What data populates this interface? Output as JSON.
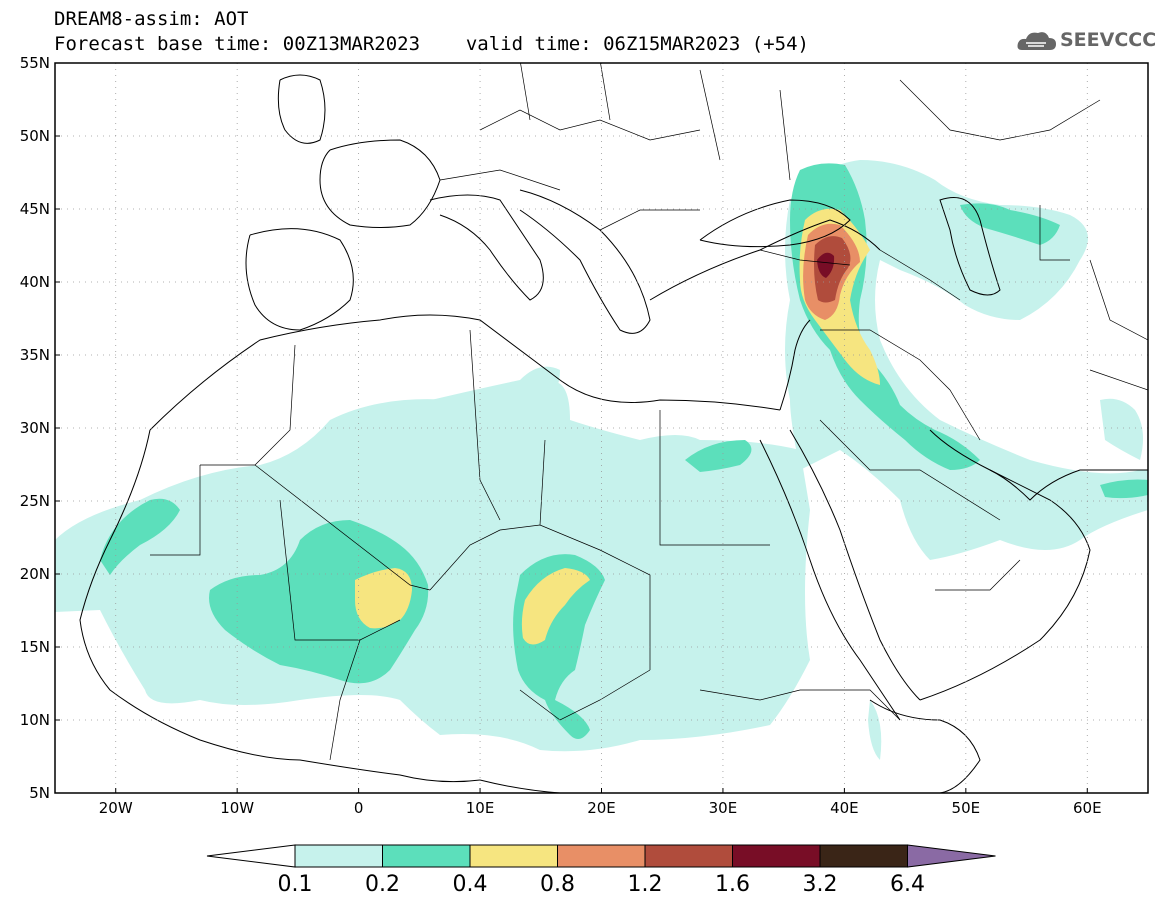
{
  "header": {
    "title_line1": "DREAM8-assim: AOT",
    "base_label": "Forecast base time: 00Z13MAR2023",
    "valid_label": "valid time: 06Z15MAR2023 (+54)"
  },
  "logo": {
    "text": "SEEVCCC",
    "icon": "cloud-icon"
  },
  "map": {
    "lat_range": [
      5,
      55
    ],
    "lon_range": [
      -25,
      65
    ],
    "lat_labels": [
      "55N",
      "50N",
      "45N",
      "40N",
      "35N",
      "30N",
      "25N",
      "20N",
      "15N",
      "10N",
      "5N"
    ],
    "lat_values": [
      55,
      50,
      45,
      40,
      35,
      30,
      25,
      20,
      15,
      10,
      5
    ],
    "lon_labels": [
      "20W",
      "10W",
      "0",
      "10E",
      "20E",
      "30E",
      "40E",
      "50E",
      "60E"
    ],
    "lon_values": [
      -20,
      -10,
      0,
      10,
      20,
      30,
      40,
      50,
      60
    ]
  },
  "colorbar": {
    "colors": [
      "#ffffff",
      "#c6f2ec",
      "#5cdfbb",
      "#f6e580",
      "#e88f66",
      "#b04c3c",
      "#780d26",
      "#3a2517",
      "#8a6aa4"
    ],
    "labels": [
      "0.1",
      "0.2",
      "0.4",
      "0.8",
      "1.2",
      "1.6",
      "3.2",
      "6.4"
    ]
  },
  "fields": {
    "level1_color": "#c6f2ec",
    "level2_color": "#5cdfbb",
    "level3_color": "#f6e580",
    "level4_color": "#e88f66",
    "level5_color": "#b04c3c",
    "level6_color": "#780d26"
  }
}
